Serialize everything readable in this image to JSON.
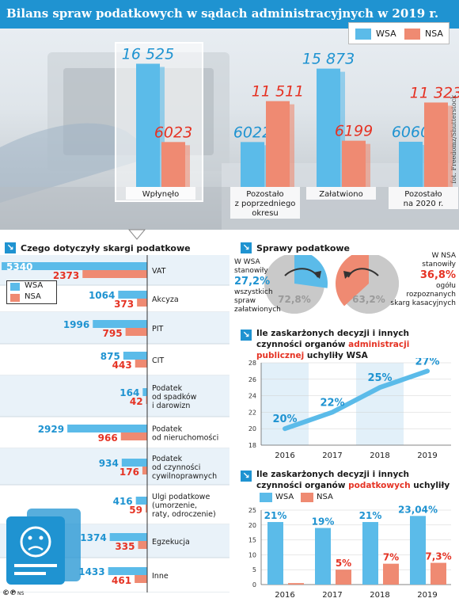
{
  "header": {
    "title": "Bilans spraw podatkowych w sądach administracyjnych w 2019 r.",
    "credit": "fot. Freedomz/Shutterstock",
    "footer_symbols": "©℗",
    "footer_author": "NS"
  },
  "colors": {
    "wsa": "#5bbbe9",
    "nsa": "#ef8a72",
    "wsa_text": "#1f93d1",
    "nsa_text": "#e53324",
    "accent": "#1f93d1"
  },
  "legend": {
    "wsa": "WSA",
    "nsa": "NSA"
  },
  "main_chart": {
    "categories": [
      "Wpłynęło",
      "Pozostało\nz poprzedniego\nokresu",
      "Załatwiono",
      "Pozostało\nna 2020 r."
    ],
    "series": [
      {
        "name": "WSA",
        "values": [
          "16 525",
          "6022",
          "15 873",
          "6060"
        ]
      },
      {
        "name": "NSA",
        "values": [
          "6023",
          "11 511",
          "6199",
          "11 323"
        ]
      }
    ]
  },
  "tax_section": {
    "title": "Czego dotyczyły skargi podatkowe",
    "rows": [
      {
        "label": "VAT",
        "wsa": "5340",
        "nsa": "2373"
      },
      {
        "label": "Akcyza",
        "wsa": "1064",
        "nsa": "373"
      },
      {
        "label": "PIT",
        "wsa": "1996",
        "nsa": "795"
      },
      {
        "label": "CIT",
        "wsa": "875",
        "nsa": "443"
      },
      {
        "label": "Podatek\nod spadków\ni darowizn",
        "wsa": "164",
        "nsa": "42"
      },
      {
        "label": "Podatek\nod nieruchomości",
        "wsa": "2929",
        "nsa": "966"
      },
      {
        "label": "Podatek\nod czynności\ncywilnoprawnych",
        "wsa": "934",
        "nsa": "176"
      },
      {
        "label": "Ulgi podatkowe\n(umorzenie,\nraty, odroczenie)",
        "wsa": "416",
        "nsa": "59"
      },
      {
        "label": "Egzekucja",
        "wsa": "1374",
        "nsa": "335"
      },
      {
        "label": "Inne",
        "wsa": "1433",
        "nsa": "461"
      }
    ]
  },
  "sprawy": {
    "title": "Sprawy podatkowe",
    "wsa_text_top": "W WSA\nstanowiły",
    "wsa_pct": "27,2%",
    "wsa_text_bottom": "wszystkich\nspraw\nzałatwionych",
    "wsa_rest": "72,8%",
    "nsa_text_top": "W NSA\nstanowiły",
    "nsa_pct": "36,8%",
    "nsa_text_bottom": "ogółu\nrozpoznanych\nskarg kasacyjnych",
    "nsa_rest": "63,2%",
    "wsa_share": 27.2,
    "nsa_share": 36.8
  },
  "chart_data": [
    {
      "type": "bar",
      "title": "Bilans spraw podatkowych w sądach administracyjnych w 2019 r.",
      "categories": [
        "Wpłynęło",
        "Pozostało z poprzedniego okresu",
        "Załatwiono",
        "Pozostało na 2020 r."
      ],
      "series": [
        {
          "name": "WSA",
          "values": [
            16525,
            6022,
            15873,
            6060
          ]
        },
        {
          "name": "NSA",
          "values": [
            6023,
            11511,
            6199,
            11323
          ]
        }
      ]
    },
    {
      "type": "bar",
      "title": "Czego dotyczyły skargi podatkowe",
      "categories": [
        "VAT",
        "Akcyza",
        "PIT",
        "CIT",
        "Podatek od spadków i darowizn",
        "Podatek od nieruchomości",
        "Podatek od czynności cywilnoprawnych",
        "Ulgi podatkowe (umorzenie, raty, odroczenie)",
        "Egzekucja",
        "Inne"
      ],
      "series": [
        {
          "name": "WSA",
          "values": [
            5340,
            1064,
            1996,
            875,
            164,
            2929,
            934,
            416,
            1374,
            1433
          ]
        },
        {
          "name": "NSA",
          "values": [
            2373,
            373,
            795,
            443,
            42,
            966,
            176,
            59,
            335,
            461
          ]
        }
      ]
    },
    {
      "type": "pie",
      "title": "Sprawy podatkowe",
      "series": [
        {
          "name": "WSA",
          "values": [
            27.2,
            72.8
          ]
        },
        {
          "name": "NSA",
          "values": [
            36.8,
            63.2
          ]
        }
      ]
    },
    {
      "type": "line",
      "title_parts": [
        "Ile zaskarżonych decyzji i innych czynności",
        "organów ",
        "administracji publicznej",
        " uchyliły WSA"
      ],
      "x": [
        "2016",
        "2017",
        "2018",
        "2019"
      ],
      "y": [
        20,
        22,
        25,
        27
      ],
      "labels": [
        "20%",
        "22%",
        "25%",
        "27%"
      ],
      "yticks": [
        "18",
        "20",
        "22",
        "24",
        "26",
        "28"
      ],
      "ylim": [
        18,
        28
      ]
    },
    {
      "type": "bar",
      "title_parts": [
        "Ile zaskarżonych decyzji i innych czynności",
        "organów ",
        "podatkowych",
        " uchyliły"
      ],
      "categories": [
        "2016",
        "2017",
        "2018",
        "2019"
      ],
      "series": [
        {
          "name": "WSA",
          "values": [
            21,
            19,
            21,
            23.04
          ],
          "labels": [
            "21%",
            "19%",
            "21%",
            "23,04%"
          ]
        },
        {
          "name": "NSA",
          "values": [
            0.5,
            5,
            7,
            7.3
          ],
          "labels": [
            "",
            "5%",
            "7%",
            "7,3%"
          ]
        }
      ],
      "yticks": [
        "0",
        "5",
        "10",
        "15",
        "20",
        "25"
      ],
      "ylim": [
        0,
        25
      ]
    }
  ]
}
